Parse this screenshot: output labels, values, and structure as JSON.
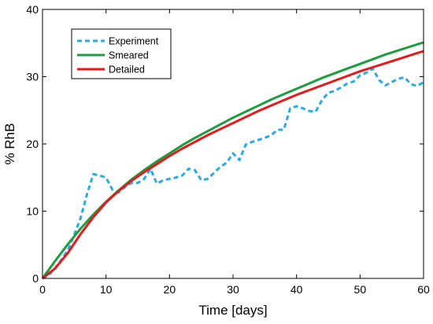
{
  "chart_data": {
    "type": "line",
    "title": "",
    "xlabel": "Time [days]",
    "ylabel": "% RhB",
    "xlim": [
      0,
      60
    ],
    "ylim": [
      0,
      40
    ],
    "xticks": [
      0,
      10,
      20,
      30,
      40,
      50,
      60
    ],
    "yticks": [
      0,
      10,
      20,
      30,
      40
    ],
    "grid": false,
    "legend_position": "top-left",
    "series": [
      {
        "name": "Experiment",
        "style": "dashed",
        "color": "#29abe2",
        "x": [
          0,
          1,
          2,
          3,
          4,
          5,
          6,
          7,
          8,
          9,
          10,
          11,
          12,
          13,
          14,
          15,
          16,
          17,
          18,
          19,
          20,
          21,
          22,
          23,
          24,
          25,
          26,
          27,
          28,
          29,
          30,
          31,
          32,
          33,
          34,
          35,
          36,
          37,
          38,
          39,
          40,
          41,
          42,
          43,
          44,
          45,
          46,
          47,
          48,
          49,
          50,
          51,
          52,
          53,
          54,
          55,
          56,
          57,
          58,
          59,
          60
        ],
        "y": [
          0,
          0.5,
          1.5,
          2.8,
          4.2,
          6.5,
          9,
          12.5,
          15.5,
          15.3,
          15,
          13.2,
          12.8,
          13.6,
          14.2,
          14.2,
          14.8,
          16.3,
          14.1,
          14.6,
          14.8,
          15,
          15.3,
          16.3,
          16.1,
          14.6,
          14.8,
          15.7,
          16.6,
          17.2,
          18.6,
          17.6,
          19.9,
          20.3,
          20.6,
          20.9,
          21.3,
          22.1,
          22.1,
          25.3,
          25.6,
          25.3,
          24.9,
          24.8,
          26.5,
          27.6,
          27.9,
          28.4,
          29,
          29.3,
          30.2,
          30.6,
          31.2,
          29.5,
          28.7,
          29.2,
          29.7,
          29.9,
          28.9,
          28.6,
          29.2
        ]
      },
      {
        "name": "Smeared",
        "style": "solid",
        "color": "#1a9e3f",
        "x": [
          0,
          2,
          4,
          6,
          8,
          10,
          12,
          14,
          16,
          18,
          20,
          22,
          24,
          26,
          28,
          30,
          32,
          34,
          36,
          38,
          40,
          42,
          44,
          46,
          48,
          50,
          52,
          54,
          56,
          58,
          60
        ],
        "y": [
          0,
          2.6,
          5.1,
          7.4,
          9.5,
          11.4,
          13.1,
          14.7,
          16.1,
          17.4,
          18.6,
          19.8,
          20.9,
          21.9,
          22.9,
          23.9,
          24.8,
          25.7,
          26.6,
          27.4,
          28.2,
          29,
          29.8,
          30.5,
          31.2,
          31.9,
          32.6,
          33.3,
          33.9,
          34.5,
          35.1
        ]
      },
      {
        "name": "Detailed",
        "style": "solid",
        "color": "#e8191b",
        "x": [
          0,
          2,
          4,
          6,
          8,
          10,
          12,
          14,
          16,
          18,
          20,
          22,
          24,
          26,
          28,
          30,
          32,
          34,
          36,
          38,
          40,
          42,
          44,
          46,
          48,
          50,
          52,
          54,
          56,
          58,
          60
        ],
        "y": [
          0,
          1.5,
          3.8,
          6.6,
          9.1,
          11.3,
          13,
          14.5,
          15.8,
          17,
          18.2,
          19.3,
          20.3,
          21.3,
          22.2,
          23.1,
          24,
          24.9,
          25.7,
          26.5,
          27.3,
          28,
          28.7,
          29.4,
          30.1,
          30.8,
          31.4,
          32,
          32.6,
          33.2,
          33.8
        ]
      }
    ]
  }
}
